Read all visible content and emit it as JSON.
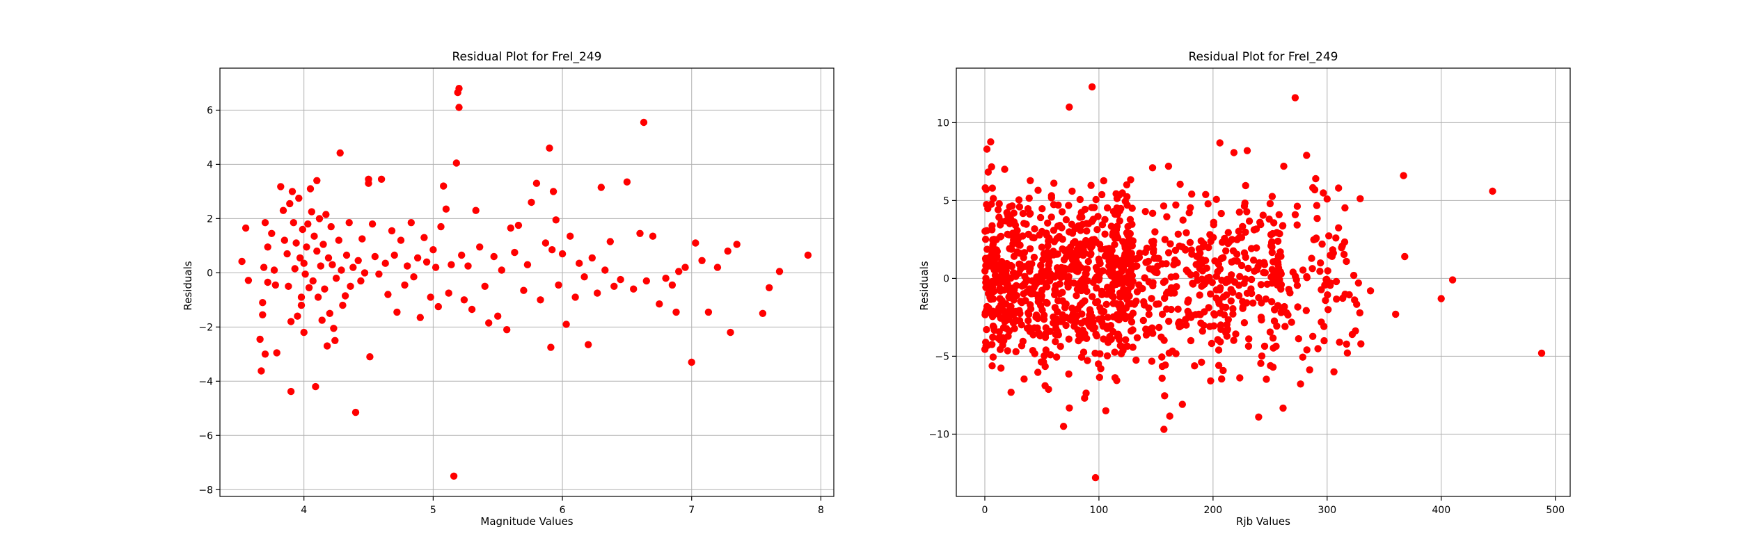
{
  "figure": {
    "background": "#ffffff",
    "marker_color": "#ff0000",
    "grid_color": "#b0b0b0"
  },
  "chart_data": [
    {
      "type": "scatter",
      "title": "Residual Plot for FreI_249",
      "xlabel": "Magnitude Values",
      "ylabel": "Residuals",
      "xlim": [
        3.35,
        8.1
      ],
      "ylim": [
        -8.25,
        7.55
      ],
      "xticks": [
        4,
        5,
        6,
        7,
        8
      ],
      "yticks": [
        -8,
        -6,
        -4,
        -2,
        0,
        2,
        4,
        6
      ],
      "grid": true,
      "series": [
        {
          "color": "#ff0000",
          "points": [
            [
              3.52,
              0.42
            ],
            [
              3.55,
              1.65
            ],
            [
              3.57,
              -0.28
            ],
            [
              3.66,
              -2.45
            ],
            [
              3.67,
              -3.62
            ],
            [
              3.68,
              -1.1
            ],
            [
              3.68,
              -1.55
            ],
            [
              3.69,
              0.2
            ],
            [
              3.7,
              1.85
            ],
            [
              3.7,
              -3.0
            ],
            [
              3.72,
              0.95
            ],
            [
              3.72,
              -0.35
            ],
            [
              3.75,
              1.45
            ],
            [
              3.77,
              0.1
            ],
            [
              3.78,
              -0.45
            ],
            [
              3.79,
              -2.95
            ],
            [
              3.82,
              3.18
            ],
            [
              3.84,
              2.3
            ],
            [
              3.85,
              1.2
            ],
            [
              3.87,
              0.7
            ],
            [
              3.88,
              -0.5
            ],
            [
              3.89,
              2.55
            ],
            [
              3.9,
              -4.38
            ],
            [
              3.9,
              -1.8
            ],
            [
              3.91,
              3.0
            ],
            [
              3.92,
              1.85
            ],
            [
              3.93,
              0.15
            ],
            [
              3.94,
              1.1
            ],
            [
              3.95,
              -1.6
            ],
            [
              3.96,
              2.75
            ],
            [
              3.97,
              0.55
            ],
            [
              3.98,
              -1.2
            ],
            [
              3.98,
              -0.9
            ],
            [
              3.99,
              1.6
            ],
            [
              4.0,
              0.35
            ],
            [
              4.0,
              -2.2
            ],
            [
              4.01,
              -0.05
            ],
            [
              4.02,
              0.95
            ],
            [
              4.03,
              1.8
            ],
            [
              4.04,
              -0.55
            ],
            [
              4.05,
              3.1
            ],
            [
              4.06,
              2.25
            ],
            [
              4.07,
              -0.3
            ],
            [
              4.08,
              1.35
            ],
            [
              4.09,
              -4.2
            ],
            [
              4.1,
              3.4
            ],
            [
              4.1,
              0.8
            ],
            [
              4.11,
              -0.9
            ],
            [
              4.12,
              2.0
            ],
            [
              4.13,
              0.25
            ],
            [
              4.14,
              -1.75
            ],
            [
              4.15,
              1.05
            ],
            [
              4.16,
              -0.6
            ],
            [
              4.17,
              2.15
            ],
            [
              4.18,
              -2.7
            ],
            [
              4.19,
              0.55
            ],
            [
              4.2,
              -1.5
            ],
            [
              4.21,
              1.7
            ],
            [
              4.22,
              0.3
            ],
            [
              4.23,
              -2.05
            ],
            [
              4.24,
              -2.5
            ],
            [
              4.25,
              -0.2
            ],
            [
              4.27,
              1.2
            ],
            [
              4.28,
              4.42
            ],
            [
              4.29,
              0.1
            ],
            [
              4.3,
              -1.2
            ],
            [
              4.32,
              -0.85
            ],
            [
              4.33,
              0.65
            ],
            [
              4.35,
              1.85
            ],
            [
              4.36,
              -0.5
            ],
            [
              4.38,
              0.2
            ],
            [
              4.4,
              -5.15
            ],
            [
              4.42,
              0.45
            ],
            [
              4.44,
              -0.3
            ],
            [
              4.45,
              1.25
            ],
            [
              4.47,
              0.0
            ],
            [
              4.5,
              3.3
            ],
            [
              4.5,
              3.45
            ],
            [
              4.51,
              -3.1
            ],
            [
              4.53,
              1.8
            ],
            [
              4.55,
              0.6
            ],
            [
              4.58,
              -0.05
            ],
            [
              4.6,
              3.45
            ],
            [
              4.63,
              0.35
            ],
            [
              4.65,
              -0.8
            ],
            [
              4.68,
              1.55
            ],
            [
              4.7,
              0.65
            ],
            [
              4.72,
              -1.45
            ],
            [
              4.75,
              1.2
            ],
            [
              4.78,
              -0.45
            ],
            [
              4.8,
              0.25
            ],
            [
              4.83,
              1.85
            ],
            [
              4.85,
              -0.15
            ],
            [
              4.88,
              0.55
            ],
            [
              4.9,
              -1.65
            ],
            [
              4.93,
              1.3
            ],
            [
              4.95,
              0.4
            ],
            [
              4.98,
              -0.9
            ],
            [
              5.0,
              0.85
            ],
            [
              5.02,
              0.2
            ],
            [
              5.04,
              -1.25
            ],
            [
              5.06,
              1.7
            ],
            [
              5.08,
              3.2
            ],
            [
              5.1,
              2.35
            ],
            [
              5.12,
              -0.75
            ],
            [
              5.14,
              0.3
            ],
            [
              5.16,
              -7.5
            ],
            [
              5.18,
              4.05
            ],
            [
              5.19,
              6.65
            ],
            [
              5.2,
              6.8
            ],
            [
              5.2,
              6.1
            ],
            [
              5.22,
              0.65
            ],
            [
              5.24,
              -1.0
            ],
            [
              5.27,
              0.25
            ],
            [
              5.3,
              -1.35
            ],
            [
              5.33,
              2.3
            ],
            [
              5.36,
              0.95
            ],
            [
              5.4,
              -0.5
            ],
            [
              5.43,
              -1.85
            ],
            [
              5.47,
              0.6
            ],
            [
              5.5,
              -1.6
            ],
            [
              5.53,
              0.1
            ],
            [
              5.57,
              -2.1
            ],
            [
              5.6,
              1.65
            ],
            [
              5.63,
              0.75
            ],
            [
              5.66,
              1.75
            ],
            [
              5.7,
              -0.65
            ],
            [
              5.73,
              0.3
            ],
            [
              5.76,
              2.6
            ],
            [
              5.8,
              3.3
            ],
            [
              5.83,
              -1.0
            ],
            [
              5.87,
              1.1
            ],
            [
              5.9,
              4.6
            ],
            [
              5.91,
              -2.75
            ],
            [
              5.92,
              0.85
            ],
            [
              5.93,
              3.0
            ],
            [
              5.95,
              1.95
            ],
            [
              5.97,
              -0.45
            ],
            [
              6.0,
              0.7
            ],
            [
              6.03,
              -1.9
            ],
            [
              6.06,
              1.35
            ],
            [
              6.1,
              -0.9
            ],
            [
              6.13,
              0.35
            ],
            [
              6.17,
              -0.15
            ],
            [
              6.2,
              -2.65
            ],
            [
              6.23,
              0.55
            ],
            [
              6.27,
              -0.75
            ],
            [
              6.3,
              3.15
            ],
            [
              6.33,
              0.1
            ],
            [
              6.37,
              1.15
            ],
            [
              6.4,
              -0.5
            ],
            [
              6.45,
              -0.25
            ],
            [
              6.5,
              3.35
            ],
            [
              6.55,
              -0.6
            ],
            [
              6.6,
              1.45
            ],
            [
              6.63,
              5.55
            ],
            [
              6.65,
              -0.3
            ],
            [
              6.7,
              1.35
            ],
            [
              6.75,
              -1.15
            ],
            [
              6.8,
              -0.2
            ],
            [
              6.85,
              -0.45
            ],
            [
              6.88,
              -1.45
            ],
            [
              6.9,
              0.05
            ],
            [
              6.95,
              0.2
            ],
            [
              7.0,
              -3.3
            ],
            [
              7.03,
              1.1
            ],
            [
              7.08,
              0.45
            ],
            [
              7.13,
              -1.45
            ],
            [
              7.2,
              0.2
            ],
            [
              7.28,
              0.8
            ],
            [
              7.3,
              -2.2
            ],
            [
              7.35,
              1.05
            ],
            [
              7.55,
              -1.5
            ],
            [
              7.6,
              -0.55
            ],
            [
              7.68,
              0.05
            ],
            [
              7.9,
              0.65
            ]
          ]
        }
      ]
    },
    {
      "type": "scatter",
      "title": "Residual Plot for FreI_249",
      "xlabel": "Rjb Values",
      "ylabel": "Residuals",
      "xlim": [
        -25,
        513
      ],
      "ylim": [
        -14.0,
        13.5
      ],
      "xticks": [
        0,
        100,
        200,
        300,
        400,
        500
      ],
      "yticks": [
        -10,
        -5,
        0,
        5,
        10
      ],
      "grid": true,
      "point_generation": {
        "description": "Dense cloud of residuals between Rjb 0 and about 320, widest near 0-250",
        "count": 1250,
        "seed": 249,
        "x_max": 330,
        "spread": 2.7,
        "y_clip": [
          -9.8,
          9.0
        ]
      },
      "series": [
        {
          "color": "#ff0000",
          "points": [
            [
              74,
              11.0
            ],
            [
              94,
              12.3
            ],
            [
              272,
              11.6
            ],
            [
              97,
              -12.8
            ],
            [
              69,
              -9.5
            ],
            [
              240,
              -8.9
            ],
            [
              360,
              -2.3
            ],
            [
              367,
              6.6
            ],
            [
              368,
              1.4
            ],
            [
              400,
              -1.3
            ],
            [
              410,
              -0.1
            ],
            [
              445,
              5.6
            ],
            [
              488,
              -4.8
            ],
            [
              322,
              -3.6
            ],
            [
              306,
              -6.0
            ],
            [
              338,
              -0.8
            ],
            [
              300,
              5.1
            ],
            [
              310,
              5.8
            ],
            [
              290,
              6.4
            ],
            [
              282,
              7.9
            ],
            [
              262,
              7.2
            ],
            [
              230,
              8.2
            ],
            [
              206,
              8.7
            ],
            [
              106,
              -8.5
            ]
          ]
        }
      ]
    }
  ]
}
